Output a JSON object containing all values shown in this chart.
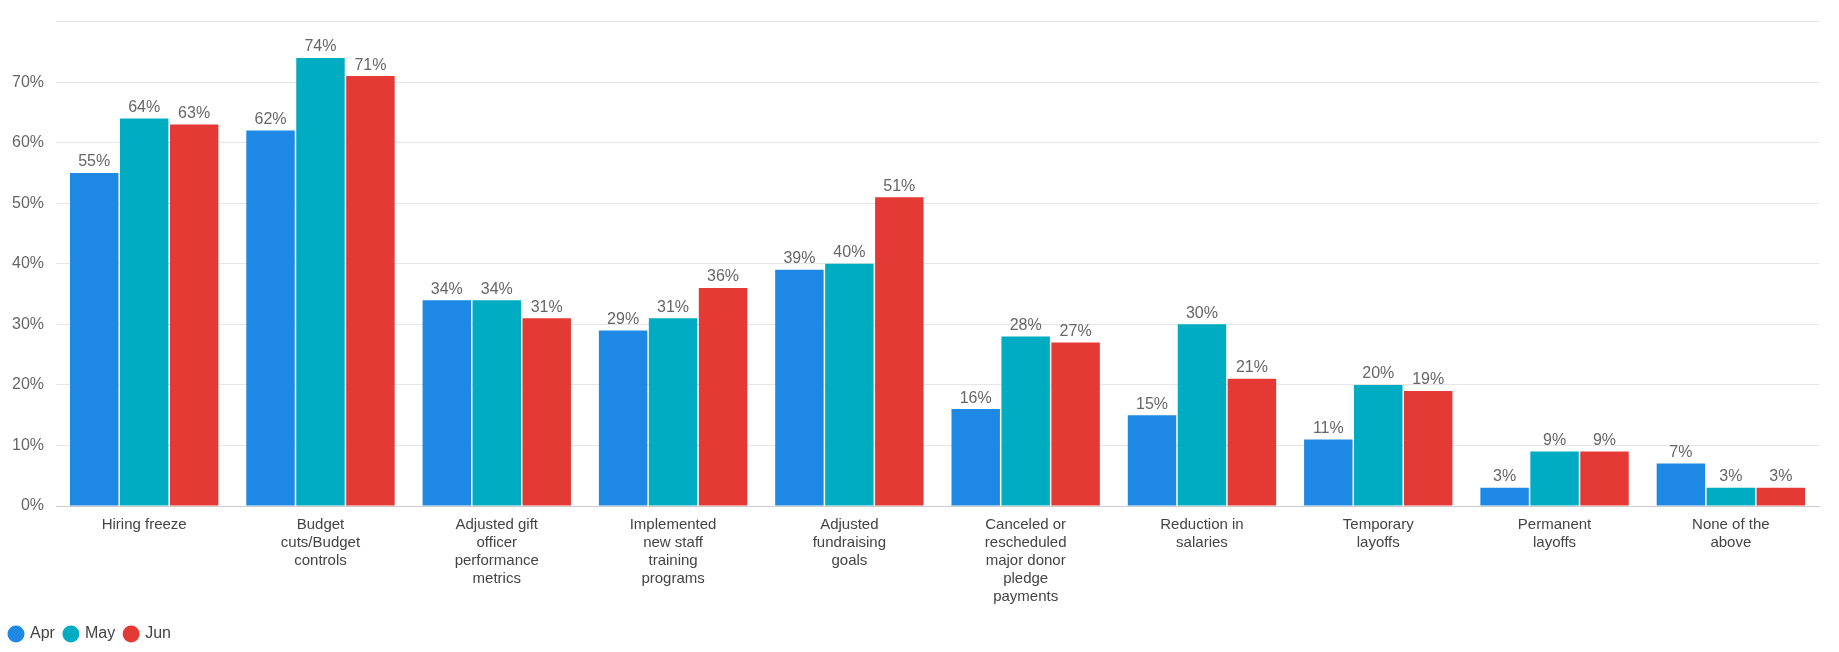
{
  "chart_data": {
    "type": "bar",
    "categories": [
      "Hiring freeze",
      "Budget cuts/Budget controls",
      "Adjusted gift officer performance metrics",
      "Implemented new staff training programs",
      "Adjusted fundraising goals",
      "Canceled or rescheduled major donor pledge payments",
      "Reduction in salaries",
      "Temporary layoffs",
      "Permanent layoffs",
      "None of the above"
    ],
    "series": [
      {
        "name": "Apr",
        "color": "#1e88e5",
        "values": [
          55,
          62,
          34,
          29,
          39,
          16,
          15,
          11,
          3,
          7
        ],
        "value_labels": [
          "55%",
          "62%",
          "34%",
          "29%",
          "39%",
          "16%",
          "15%",
          "11%",
          "3%",
          "7%"
        ]
      },
      {
        "name": "May",
        "color": "#00acc1",
        "values": [
          64,
          74,
          34,
          31,
          40,
          28,
          30,
          20,
          9,
          3
        ],
        "value_labels": [
          "64%",
          "74%",
          "34%",
          "31%",
          "40%",
          "28%",
          "30%",
          "20%",
          "9%",
          "3%"
        ]
      },
      {
        "name": "Jun",
        "color": "#e53935",
        "values": [
          63,
          71,
          31,
          36,
          51,
          27,
          21,
          19,
          9,
          3
        ],
        "value_labels": [
          "63%",
          "71%",
          "31%",
          "36%",
          "51%",
          "27%",
          "21%",
          "19%",
          "9%",
          "3%"
        ]
      }
    ],
    "ylim": [
      0,
      80
    ],
    "yticks": [
      {
        "value": 0,
        "label": "0%"
      },
      {
        "value": 10,
        "label": "10%"
      },
      {
        "value": 20,
        "label": "20%"
      },
      {
        "value": 30,
        "label": "30%"
      },
      {
        "value": 40,
        "label": "40%"
      },
      {
        "value": 50,
        "label": "50%"
      },
      {
        "value": 60,
        "label": "60%"
      },
      {
        "value": 70,
        "label": "70%"
      },
      {
        "value": 80,
        "label": null
      }
    ],
    "grid": "y",
    "legend": "bottom left",
    "marker": "circle"
  }
}
